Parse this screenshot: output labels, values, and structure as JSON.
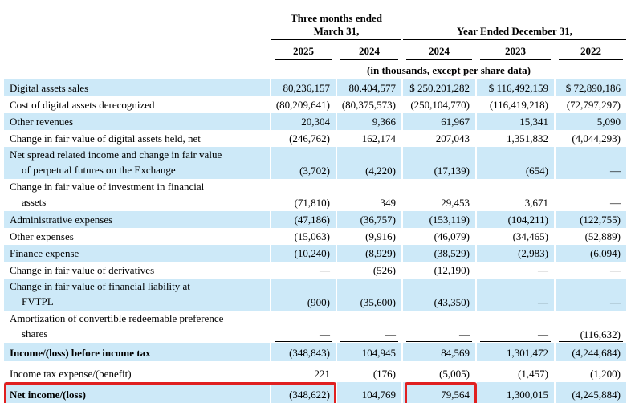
{
  "header": {
    "three_months": [
      "Three months ended",
      "March 31,"
    ],
    "year_ended": "Year Ended December 31,",
    "years": [
      "2025",
      "2024",
      "2024",
      "2023",
      "2022"
    ],
    "units": "(in thousands, except per share data)"
  },
  "table": {
    "rows": [
      {
        "label": [
          "Digital assets sales"
        ],
        "values": [
          "80,236,157",
          "80,404,577",
          "$ 250,201,282",
          "$ 116,492,159",
          "$ 72,890,186"
        ]
      },
      {
        "label": [
          "Cost of digital assets derecognized"
        ],
        "values": [
          "(80,209,641)",
          "(80,375,573)",
          "(250,104,770)",
          "(116,419,218)",
          "(72,797,297)"
        ]
      },
      {
        "label": [
          "Other revenues"
        ],
        "values": [
          "20,304",
          "9,366",
          "61,967",
          "15,341",
          "5,090"
        ]
      },
      {
        "label": [
          "Change in fair value of digital assets held, net"
        ],
        "values": [
          "(246,762)",
          "162,174",
          "207,043",
          "1,351,832",
          "(4,044,293)"
        ]
      },
      {
        "label": [
          "Net spread related income and change in fair value",
          "of perpetual futures on the Exchange"
        ],
        "values": [
          "(3,702)",
          "(4,220)",
          "(17,139)",
          "(654)",
          "—"
        ]
      },
      {
        "label": [
          "Change in fair value of investment in financial",
          "assets"
        ],
        "values": [
          "(71,810)",
          "349",
          "29,453",
          "3,671",
          "—"
        ]
      },
      {
        "label": [
          "Administrative expenses"
        ],
        "values": [
          "(47,186)",
          "(36,757)",
          "(153,119)",
          "(104,211)",
          "(122,755)"
        ]
      },
      {
        "label": [
          "Other expenses"
        ],
        "values": [
          "(15,063)",
          "(9,916)",
          "(46,079)",
          "(34,465)",
          "(52,889)"
        ]
      },
      {
        "label": [
          "Finance expense"
        ],
        "values": [
          "(10,240)",
          "(8,929)",
          "(38,529)",
          "(2,983)",
          "(6,094)"
        ]
      },
      {
        "label": [
          "Change in fair value of derivatives"
        ],
        "values": [
          "—",
          "(526)",
          "(12,190)",
          "—",
          "—"
        ]
      },
      {
        "label": [
          "Change in fair value of financial liability at",
          "FVTPL"
        ],
        "values": [
          "(900)",
          "(35,600)",
          "(43,350)",
          "—",
          "—"
        ]
      },
      {
        "label": [
          "Amortization of convertible redeemable preference",
          "shares"
        ],
        "values": [
          "—",
          "—",
          "—",
          "—",
          "(116,632)"
        ]
      },
      {
        "label": [
          "Income/(loss) before income tax"
        ],
        "values": [
          "(348,843)",
          "104,945",
          "84,569",
          "1,301,472",
          "(4,244,684)"
        ],
        "bold": true
      },
      {
        "label": [
          "Income tax expense/(benefit)"
        ],
        "values": [
          "221",
          "(176)",
          "(5,005)",
          "(1,457)",
          "(1,200)"
        ]
      },
      {
        "label": [
          "Net income/(loss)"
        ],
        "values": [
          "(348,622)",
          "104,769",
          "79,564",
          "1,300,015",
          "(4,245,884)"
        ],
        "bold": true
      }
    ]
  }
}
